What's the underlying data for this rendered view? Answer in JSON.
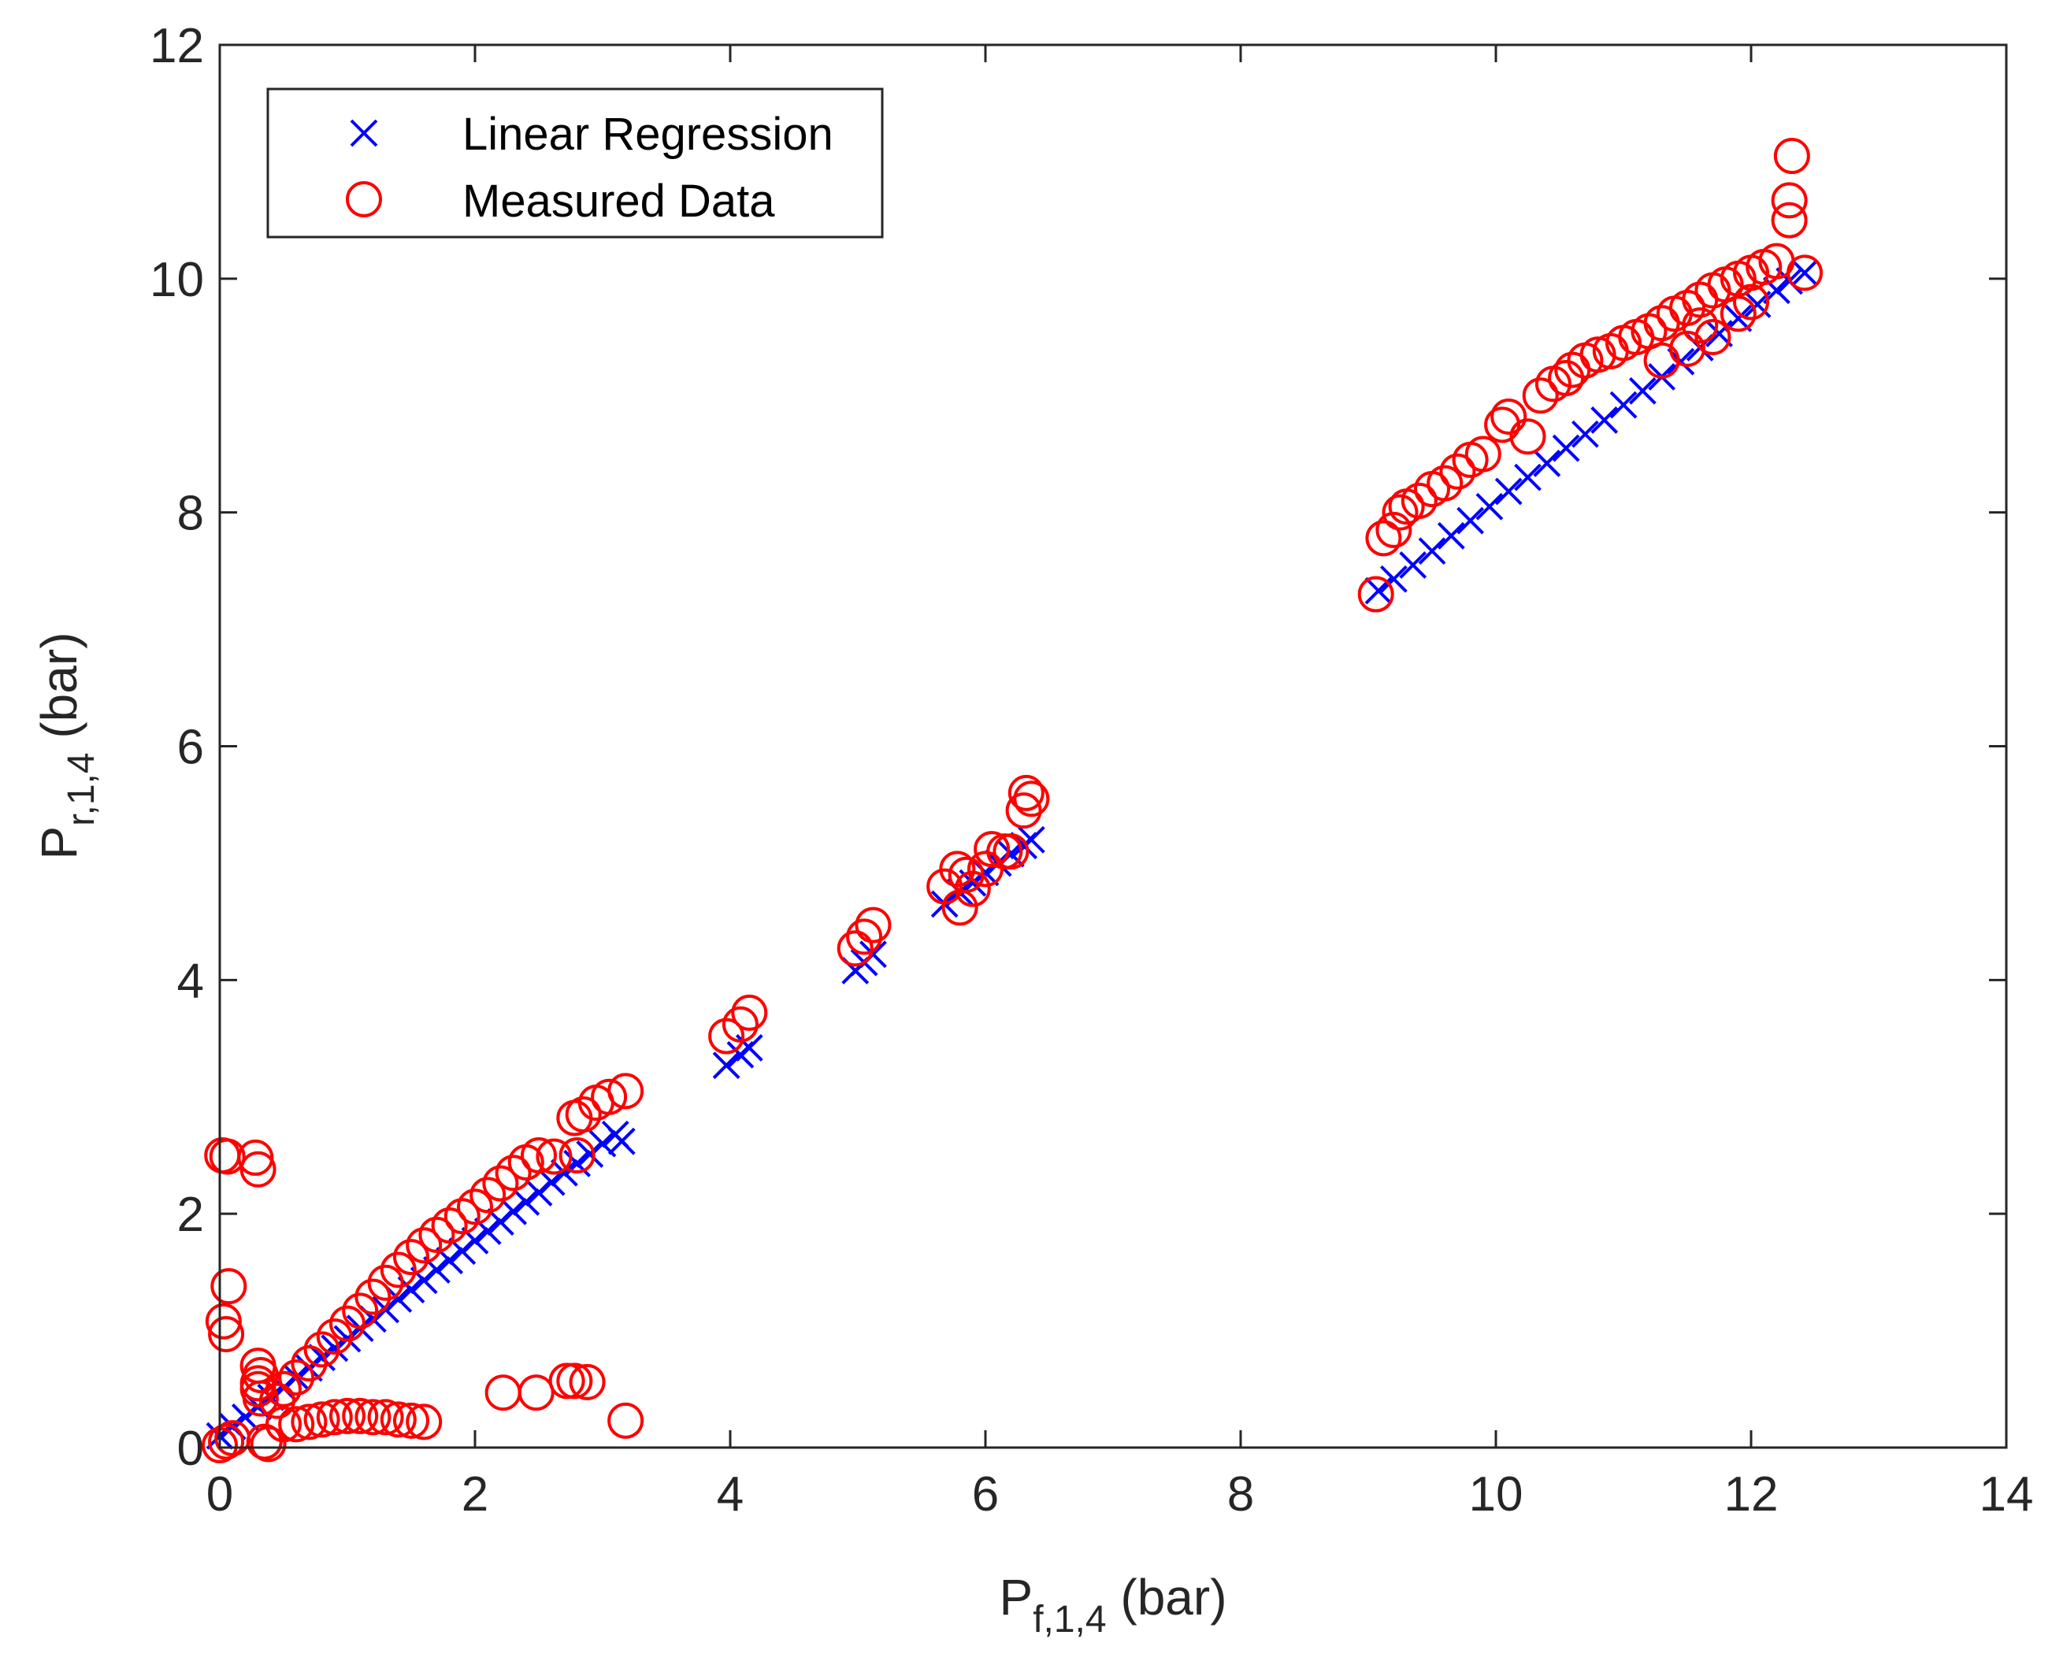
{
  "chart_data": {
    "type": "scatter",
    "title": "",
    "xlabel": {
      "main": "P",
      "subscript": "f,1,4",
      "unit": " (bar)"
    },
    "ylabel": {
      "main": "P",
      "subscript": "r,1,4",
      "unit": " (bar)"
    },
    "xlim": [
      0,
      14
    ],
    "ylim": [
      0,
      12
    ],
    "xticks": [
      0,
      2,
      4,
      6,
      8,
      10,
      12,
      14
    ],
    "yticks": [
      0,
      2,
      4,
      6,
      8,
      10,
      12
    ],
    "xtick_labels": [
      "0",
      "2",
      "4",
      "6",
      "8",
      "10",
      "12",
      "14"
    ],
    "ytick_labels": [
      "0",
      "2",
      "4",
      "6",
      "8",
      "10",
      "12"
    ],
    "grid": false,
    "legend_position": "top-left",
    "series": [
      {
        "name": "Linear Regression",
        "marker": "x",
        "color": "#0000ff",
        "points": [
          [
            0.0,
            0.1
          ],
          [
            0.1,
            0.18
          ],
          [
            0.2,
            0.26
          ],
          [
            0.3,
            0.35
          ],
          [
            0.4,
            0.43
          ],
          [
            0.5,
            0.51
          ],
          [
            0.6,
            0.6
          ],
          [
            0.7,
            0.68
          ],
          [
            0.8,
            0.77
          ],
          [
            0.9,
            0.85
          ],
          [
            1.0,
            0.93
          ],
          [
            1.1,
            1.02
          ],
          [
            1.2,
            1.1
          ],
          [
            1.3,
            1.18
          ],
          [
            1.4,
            1.27
          ],
          [
            1.5,
            1.35
          ],
          [
            1.6,
            1.43
          ],
          [
            1.7,
            1.52
          ],
          [
            1.8,
            1.6
          ],
          [
            1.9,
            1.68
          ],
          [
            2.0,
            1.77
          ],
          [
            2.1,
            1.85
          ],
          [
            2.2,
            1.93
          ],
          [
            2.3,
            2.02
          ],
          [
            2.4,
            2.1
          ],
          [
            2.5,
            2.18
          ],
          [
            2.6,
            2.27
          ],
          [
            2.7,
            2.35
          ],
          [
            2.8,
            2.43
          ],
          [
            2.9,
            2.51
          ],
          [
            3.0,
            2.6
          ],
          [
            3.1,
            2.68
          ],
          [
            3.15,
            2.62
          ],
          [
            3.97,
            3.27
          ],
          [
            4.08,
            3.36
          ],
          [
            4.15,
            3.42
          ],
          [
            4.98,
            4.08
          ],
          [
            5.05,
            4.15
          ],
          [
            5.12,
            4.22
          ],
          [
            5.68,
            4.65
          ],
          [
            5.8,
            4.75
          ],
          [
            5.9,
            4.83
          ],
          [
            6.0,
            4.92
          ],
          [
            6.1,
            5.0
          ],
          [
            6.2,
            5.08
          ],
          [
            6.3,
            5.15
          ],
          [
            6.36,
            5.2
          ],
          [
            9.08,
            7.33
          ],
          [
            9.2,
            7.43
          ],
          [
            9.35,
            7.55
          ],
          [
            9.5,
            7.67
          ],
          [
            9.65,
            7.8
          ],
          [
            9.8,
            7.93
          ],
          [
            9.95,
            8.05
          ],
          [
            10.1,
            8.18
          ],
          [
            10.25,
            8.3
          ],
          [
            10.4,
            8.42
          ],
          [
            10.55,
            8.55
          ],
          [
            10.7,
            8.67
          ],
          [
            10.85,
            8.79
          ],
          [
            11.0,
            8.92
          ],
          [
            11.15,
            9.04
          ],
          [
            11.3,
            9.16
          ],
          [
            11.45,
            9.29
          ],
          [
            11.6,
            9.41
          ],
          [
            11.75,
            9.53
          ],
          [
            11.9,
            9.66
          ],
          [
            12.05,
            9.78
          ],
          [
            12.2,
            9.9
          ],
          [
            12.3,
            9.98
          ],
          [
            12.42,
            10.05
          ]
        ]
      },
      {
        "name": "Measured Data",
        "marker": "o",
        "color": "#ff0000",
        "points": [
          [
            0.0,
            0.02
          ],
          [
            0.05,
            0.05
          ],
          [
            0.1,
            0.08
          ],
          [
            0.02,
            2.5
          ],
          [
            0.06,
            2.49
          ],
          [
            0.28,
            2.48
          ],
          [
            0.3,
            2.38
          ],
          [
            0.03,
            1.08
          ],
          [
            0.05,
            0.97
          ],
          [
            0.07,
            1.38
          ],
          [
            0.3,
            0.7
          ],
          [
            0.32,
            0.62
          ],
          [
            0.3,
            0.55
          ],
          [
            0.3,
            0.5
          ],
          [
            0.32,
            0.42
          ],
          [
            0.35,
            0.05
          ],
          [
            0.38,
            0.03
          ],
          [
            0.45,
            0.4
          ],
          [
            0.5,
            0.5
          ],
          [
            0.6,
            0.6
          ],
          [
            0.7,
            0.72
          ],
          [
            0.8,
            0.84
          ],
          [
            0.9,
            0.95
          ],
          [
            1.0,
            1.06
          ],
          [
            1.1,
            1.17
          ],
          [
            1.2,
            1.29
          ],
          [
            1.3,
            1.41
          ],
          [
            1.4,
            1.52
          ],
          [
            1.5,
            1.63
          ],
          [
            1.6,
            1.73
          ],
          [
            1.7,
            1.82
          ],
          [
            1.8,
            1.9
          ],
          [
            1.9,
            1.98
          ],
          [
            2.0,
            2.06
          ],
          [
            2.1,
            2.16
          ],
          [
            2.2,
            2.26
          ],
          [
            2.3,
            2.35
          ],
          [
            2.4,
            2.44
          ],
          [
            2.5,
            2.5
          ],
          [
            2.62,
            2.49
          ],
          [
            2.78,
            2.82
          ],
          [
            2.85,
            2.85
          ],
          [
            2.95,
            2.95
          ],
          [
            3.05,
            3.0
          ],
          [
            3.18,
            3.05
          ],
          [
            2.8,
            2.5
          ],
          [
            0.5,
            0.2
          ],
          [
            0.6,
            0.2
          ],
          [
            0.7,
            0.22
          ],
          [
            0.8,
            0.24
          ],
          [
            0.9,
            0.26
          ],
          [
            1.0,
            0.27
          ],
          [
            1.1,
            0.27
          ],
          [
            1.2,
            0.26
          ],
          [
            1.3,
            0.26
          ],
          [
            1.4,
            0.24
          ],
          [
            1.5,
            0.23
          ],
          [
            1.6,
            0.22
          ],
          [
            2.22,
            0.47
          ],
          [
            2.48,
            0.47
          ],
          [
            2.72,
            0.57
          ],
          [
            2.78,
            0.57
          ],
          [
            2.88,
            0.56
          ],
          [
            3.18,
            0.23
          ],
          [
            3.97,
            3.52
          ],
          [
            4.08,
            3.62
          ],
          [
            4.15,
            3.72
          ],
          [
            4.98,
            4.27
          ],
          [
            5.05,
            4.37
          ],
          [
            5.12,
            4.47
          ],
          [
            5.68,
            4.8
          ],
          [
            5.78,
            4.95
          ],
          [
            5.85,
            4.9
          ],
          [
            5.8,
            4.62
          ],
          [
            5.9,
            4.78
          ],
          [
            6.0,
            4.95
          ],
          [
            6.05,
            5.12
          ],
          [
            6.15,
            5.1
          ],
          [
            6.2,
            5.1
          ],
          [
            6.3,
            5.45
          ],
          [
            6.32,
            5.6
          ],
          [
            6.36,
            5.55
          ],
          [
            9.06,
            7.3
          ],
          [
            9.12,
            7.78
          ],
          [
            9.2,
            7.85
          ],
          [
            9.25,
            8.0
          ],
          [
            9.3,
            8.05
          ],
          [
            9.4,
            8.1
          ],
          [
            9.5,
            8.2
          ],
          [
            9.6,
            8.25
          ],
          [
            9.7,
            8.35
          ],
          [
            9.8,
            8.45
          ],
          [
            9.9,
            8.5
          ],
          [
            10.05,
            8.75
          ],
          [
            10.1,
            8.82
          ],
          [
            10.25,
            8.65
          ],
          [
            10.35,
            9.0
          ],
          [
            10.45,
            9.1
          ],
          [
            10.55,
            9.15
          ],
          [
            10.6,
            9.22
          ],
          [
            10.7,
            9.3
          ],
          [
            10.8,
            9.35
          ],
          [
            10.9,
            9.38
          ],
          [
            11.0,
            9.45
          ],
          [
            11.1,
            9.5
          ],
          [
            11.2,
            9.55
          ],
          [
            11.3,
            9.62
          ],
          [
            11.4,
            9.7
          ],
          [
            11.5,
            9.75
          ],
          [
            11.6,
            9.82
          ],
          [
            11.7,
            9.9
          ],
          [
            11.8,
            9.95
          ],
          [
            11.9,
            10.0
          ],
          [
            12.0,
            10.05
          ],
          [
            12.1,
            10.1
          ],
          [
            12.2,
            10.15
          ],
          [
            12.3,
            10.5
          ],
          [
            12.3,
            10.67
          ],
          [
            12.32,
            11.05
          ],
          [
            12.42,
            10.05
          ],
          [
            11.3,
            9.3
          ],
          [
            11.5,
            9.4
          ],
          [
            11.7,
            9.5
          ],
          [
            11.9,
            9.7
          ],
          [
            12.0,
            9.8
          ],
          [
            11.6,
            9.6
          ]
        ]
      }
    ]
  }
}
